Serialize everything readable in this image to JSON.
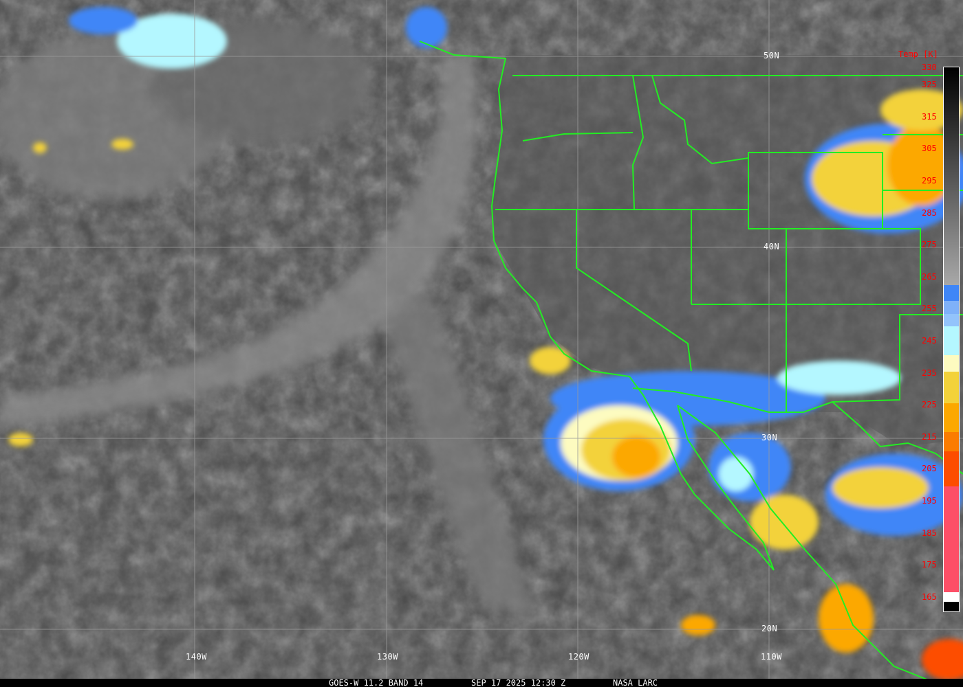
{
  "caption": {
    "satellite": "GOES-W 11.2 BAND 14",
    "datetime": "SEP 17 2025 12:30 Z",
    "source": "NASA LARC"
  },
  "grid": {
    "latitudes": [
      "50N",
      "40N",
      "30N",
      "20N"
    ],
    "longitudes": [
      "140W",
      "130W",
      "120W",
      "110W"
    ]
  },
  "colorbar": {
    "title": "Temp [K]",
    "labels": [
      "330",
      "325",
      "315",
      "305",
      "295",
      "285",
      "275",
      "265",
      "255",
      "245",
      "235",
      "225",
      "215",
      "205",
      "195",
      "185",
      "175",
      "165"
    ],
    "segments": [
      {
        "from": 330,
        "to": 262,
        "color": "gradient",
        "start": "#000000",
        "end": "#a8a8a8"
      },
      {
        "from": 262,
        "to": 257,
        "color": "#3f86f7"
      },
      {
        "from": 257,
        "to": 253,
        "color": "#7fb1f9"
      },
      {
        "from": 253,
        "to": 249,
        "color": "#93c3fb"
      },
      {
        "from": 249,
        "to": 240,
        "color": "#b4f7ff"
      },
      {
        "from": 240,
        "to": 235,
        "color": "#fdfbc0"
      },
      {
        "from": 235,
        "to": 225,
        "color": "#f3d23a"
      },
      {
        "from": 225,
        "to": 216,
        "color": "#fca800"
      },
      {
        "from": 216,
        "to": 210,
        "color": "#fb7c00"
      },
      {
        "from": 210,
        "to": 199,
        "color": "#fd4d00"
      },
      {
        "from": 199,
        "to": 166,
        "color": "#fd4f67"
      },
      {
        "from": 166,
        "to": 163,
        "color": "#ffffff"
      },
      {
        "from": 163,
        "to": 160,
        "color": "#000000"
      }
    ]
  },
  "colors": {
    "borders": "#22ee22",
    "gridlines": "#9a9a9a",
    "labels_colorbar": "#ff0000"
  }
}
